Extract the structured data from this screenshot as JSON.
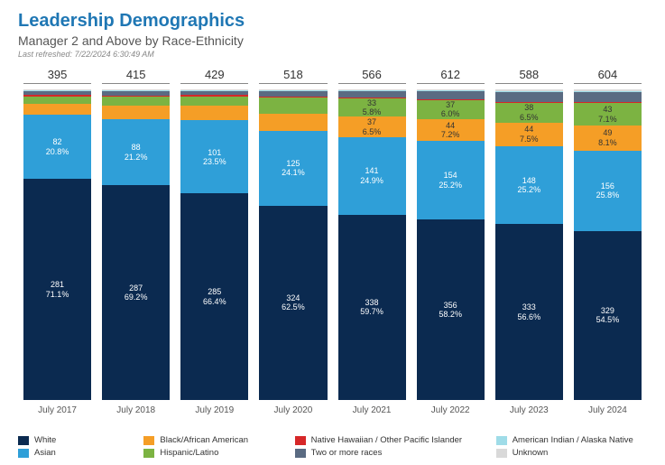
{
  "header": {
    "title": "Leadership Demographics",
    "subtitle": "Manager 2 and Above by Race-Ethnicity",
    "refreshed_label": "Last refreshed:",
    "refreshed_value": "7/22/2024 6:30:49 AM"
  },
  "chart": {
    "type": "stacked_bar_100pct",
    "title_color": "#1f77b4",
    "background_color": "#ffffff",
    "max_total": 612,
    "series": [
      {
        "key": "white",
        "label": "White",
        "color": "#0b2a50"
      },
      {
        "key": "asian",
        "label": "Asian",
        "color": "#2f9fd8"
      },
      {
        "key": "black",
        "label": "Black/African American",
        "color": "#f59e26"
      },
      {
        "key": "hispanic",
        "label": "Hispanic/Latino",
        "color": "#7cb342"
      },
      {
        "key": "nhpi",
        "label": "Native Hawaiian / Other Pacific Islander",
        "color": "#d62728"
      },
      {
        "key": "multi",
        "label": "Two or more races",
        "color": "#5a6b82"
      },
      {
        "key": "aian",
        "label": "American Indian / Alaska Native",
        "color": "#9fdce8"
      },
      {
        "key": "unknown",
        "label": "Unknown",
        "color": "#d9d9d9"
      }
    ],
    "categories": [
      {
        "label": "July 2017",
        "total": 395,
        "values": {
          "white": 281,
          "asian": 82,
          "black": 14,
          "hispanic": 9,
          "nhpi": 2,
          "multi": 5,
          "aian": 1,
          "unknown": 1
        },
        "display": {
          "white": {
            "n": "281",
            "p": "71.1%"
          },
          "asian": {
            "n": "82",
            "p": "20.8%"
          }
        }
      },
      {
        "label": "July 2018",
        "total": 415,
        "values": {
          "white": 287,
          "asian": 88,
          "black": 18,
          "hispanic": 12,
          "nhpi": 2,
          "multi": 6,
          "aian": 1,
          "unknown": 1
        },
        "display": {
          "white": {
            "n": "287",
            "p": "69.2%"
          },
          "asian": {
            "n": "88",
            "p": "21.2%"
          }
        }
      },
      {
        "label": "July 2019",
        "total": 429,
        "values": {
          "white": 285,
          "asian": 101,
          "black": 20,
          "hispanic": 13,
          "nhpi": 2,
          "multi": 6,
          "aian": 1,
          "unknown": 1
        },
        "display": {
          "white": {
            "n": "285",
            "p": "66.4%"
          },
          "asian": {
            "n": "101",
            "p": "23.5%"
          }
        }
      },
      {
        "label": "July 2020",
        "total": 518,
        "values": {
          "white": 324,
          "asian": 125,
          "black": 28,
          "hispanic": 27,
          "nhpi": 2,
          "multi": 9,
          "aian": 1,
          "unknown": 2
        },
        "display": {
          "white": {
            "n": "324",
            "p": "62.5%"
          },
          "asian": {
            "n": "125",
            "p": "24.1%"
          }
        }
      },
      {
        "label": "July 2021",
        "total": 566,
        "values": {
          "white": 338,
          "asian": 141,
          "black": 37,
          "hispanic": 33,
          "nhpi": 2,
          "multi": 12,
          "aian": 1,
          "unknown": 2
        },
        "display": {
          "white": {
            "n": "338",
            "p": "59.7%"
          },
          "asian": {
            "n": "141",
            "p": "24.9%"
          },
          "black": {
            "n": "37",
            "p": "6.5%"
          },
          "hispanic": {
            "n": "33",
            "p": "5.8%"
          }
        }
      },
      {
        "label": "July 2022",
        "total": 612,
        "values": {
          "white": 356,
          "asian": 154,
          "black": 44,
          "hispanic": 37,
          "nhpi": 2,
          "multi": 15,
          "aian": 2,
          "unknown": 2
        },
        "display": {
          "white": {
            "n": "356",
            "p": "58.2%"
          },
          "asian": {
            "n": "154",
            "p": "25.2%"
          },
          "black": {
            "n": "44",
            "p": "7.2%"
          },
          "hispanic": {
            "n": "37",
            "p": "6.0%"
          }
        }
      },
      {
        "label": "July 2023",
        "total": 588,
        "values": {
          "white": 333,
          "asian": 148,
          "black": 44,
          "hispanic": 38,
          "nhpi": 2,
          "multi": 18,
          "aian": 2,
          "unknown": 3
        },
        "display": {
          "white": {
            "n": "333",
            "p": "56.6%"
          },
          "asian": {
            "n": "148",
            "p": "25.2%"
          },
          "black": {
            "n": "44",
            "p": "7.5%"
          },
          "hispanic": {
            "n": "38",
            "p": "6.5%"
          }
        }
      },
      {
        "label": "July 2024",
        "total": 604,
        "values": {
          "white": 329,
          "asian": 156,
          "black": 49,
          "hispanic": 43,
          "nhpi": 2,
          "multi": 20,
          "aian": 2,
          "unknown": 3
        },
        "display": {
          "white": {
            "n": "329",
            "p": "54.5%"
          },
          "asian": {
            "n": "156",
            "p": "25.8%"
          },
          "black": {
            "n": "49",
            "p": "8.1%"
          },
          "hispanic": {
            "n": "43",
            "p": "7.1%"
          }
        }
      }
    ]
  }
}
